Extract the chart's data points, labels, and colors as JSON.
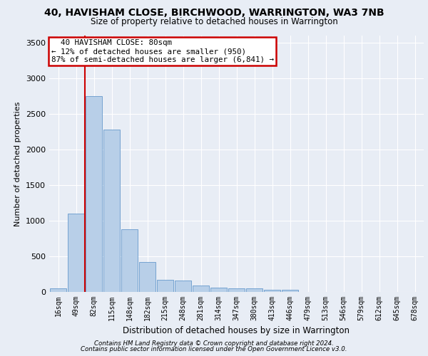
{
  "title1": "40, HAVISHAM CLOSE, BIRCHWOOD, WARRINGTON, WA3 7NB",
  "title2": "Size of property relative to detached houses in Warrington",
  "xlabel": "Distribution of detached houses by size in Warrington",
  "ylabel": "Number of detached properties",
  "bar_color": "#b8cfe8",
  "bar_edge_color": "#6699cc",
  "background_color": "#e8edf5",
  "grid_color": "#ffffff",
  "annotation_line_color": "#cc0000",
  "annotation_box_color": "#cc0000",
  "annotation_text": "  40 HAVISHAM CLOSE: 80sqm\n← 12% of detached houses are smaller (950)\n87% of semi-detached houses are larger (6,841) →",
  "footer1": "Contains HM Land Registry data © Crown copyright and database right 2024.",
  "footer2": "Contains public sector information licensed under the Open Government Licence v3.0.",
  "categories": [
    "16sqm",
    "49sqm",
    "82sqm",
    "115sqm",
    "148sqm",
    "182sqm",
    "215sqm",
    "248sqm",
    "281sqm",
    "314sqm",
    "347sqm",
    "380sqm",
    "413sqm",
    "446sqm",
    "479sqm",
    "513sqm",
    "546sqm",
    "579sqm",
    "612sqm",
    "645sqm",
    "678sqm"
  ],
  "values": [
    55,
    1100,
    2750,
    2280,
    880,
    420,
    170,
    165,
    90,
    65,
    55,
    50,
    30,
    30,
    0,
    0,
    0,
    0,
    0,
    0,
    0
  ],
  "ylim": [
    0,
    3600
  ],
  "yticks": [
    0,
    500,
    1000,
    1500,
    2000,
    2500,
    3000,
    3500
  ]
}
